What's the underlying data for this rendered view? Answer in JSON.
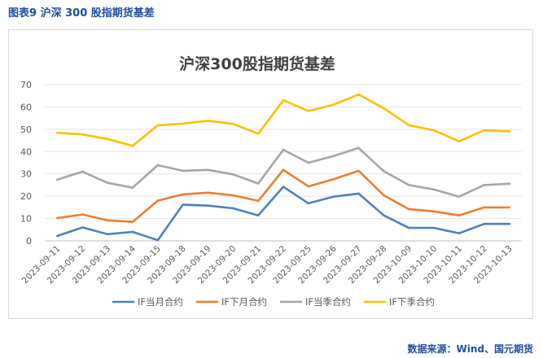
{
  "figure": {
    "caption": "图表9    沪深 300 股指期货基差",
    "source": "数据来源：Wind、国元期货"
  },
  "chart_data": {
    "type": "line",
    "title": "沪深300股指期货基差",
    "xlabel": "",
    "ylabel": "",
    "ylim": [
      0,
      70
    ],
    "yticks": [
      0,
      10,
      20,
      30,
      40,
      50,
      60,
      70
    ],
    "grid": true,
    "legend_position": "bottom",
    "categories": [
      "2023-09-11",
      "2023-09-12",
      "2023-09-13",
      "2023-09-14",
      "2023-09-15",
      "2023-09-18",
      "2023-09-19",
      "2023-09-20",
      "2023-09-21",
      "2023-09-22",
      "2023-09-25",
      "2023-09-26",
      "2023-09-27",
      "2023-09-28",
      "2023-10-09",
      "2023-10-10",
      "2023-10-11",
      "2023-10-12",
      "2023-10-13"
    ],
    "series": [
      {
        "name": "IF当月合约",
        "color": "#4e81bd",
        "values": [
          2.2,
          6.0,
          3.0,
          4.0,
          0.3,
          16.2,
          15.8,
          14.6,
          11.4,
          24.2,
          16.8,
          19.8,
          21.2,
          11.4,
          5.8,
          5.8,
          3.4,
          7.6,
          7.6
        ]
      },
      {
        "name": "IF下月合约",
        "color": "#ed7d31",
        "values": [
          10.2,
          11.8,
          9.2,
          8.5,
          18.0,
          20.8,
          21.6,
          20.4,
          17.9,
          31.8,
          24.4,
          27.6,
          31.4,
          20.4,
          14.2,
          13.2,
          11.4,
          15.0,
          15.0
        ]
      },
      {
        "name": "IF当季合约",
        "color": "#a5a5a5",
        "values": [
          27.4,
          31.0,
          26.0,
          23.8,
          33.9,
          31.4,
          31.8,
          29.8,
          25.7,
          40.8,
          35.0,
          38.0,
          41.6,
          31.2,
          25.0,
          23.0,
          19.8,
          25.0,
          25.6
        ]
      },
      {
        "name": "IF下季合约",
        "color": "#ffc000",
        "values": [
          48.4,
          47.7,
          45.6,
          42.6,
          51.8,
          52.5,
          53.8,
          52.4,
          48.0,
          63.0,
          58.2,
          61.0,
          65.6,
          59.4,
          51.8,
          49.5,
          44.6,
          49.5,
          49.1
        ]
      }
    ]
  }
}
